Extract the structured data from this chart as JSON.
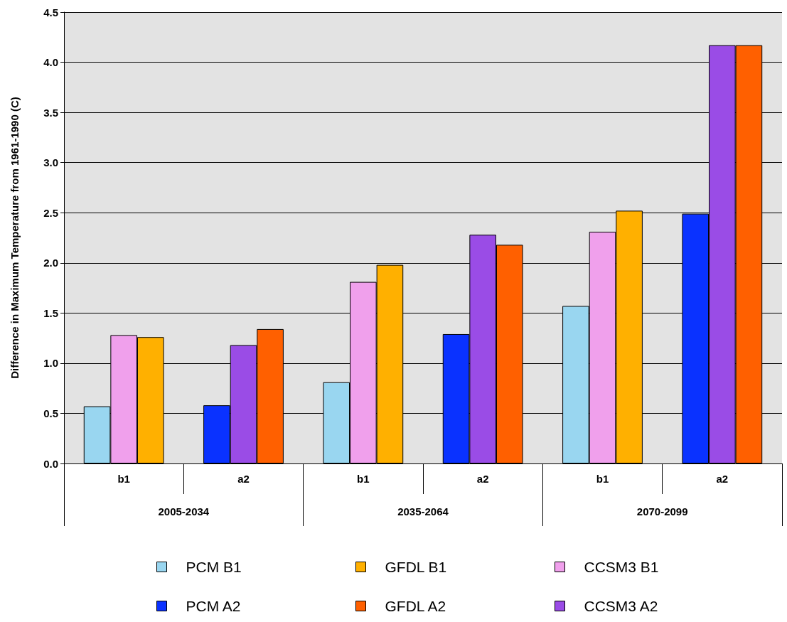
{
  "chart_data": {
    "type": "bar",
    "ylabel": "Difference in Maximum Temperature from 1961-1990 (C)",
    "categories": [
      "b1",
      "a2",
      "b1",
      "a2",
      "b1",
      "a2"
    ],
    "annotations": [
      "2005-2034",
      "2035-2064",
      "2070-2099"
    ],
    "series": [
      {
        "name": "PCM B1",
        "color": "#99d6f0",
        "values": [
          0.57,
          null,
          0.81,
          null,
          1.57,
          null
        ]
      },
      {
        "name": "CCSM3 B1",
        "color": "#f0a0ec",
        "values": [
          1.28,
          null,
          1.81,
          null,
          2.31,
          null
        ]
      },
      {
        "name": "GFDL B1",
        "color": "#ffb000",
        "values": [
          1.26,
          null,
          1.98,
          null,
          2.52,
          null
        ]
      },
      {
        "name": "PCM A2",
        "color": "#0a32ff",
        "values": [
          null,
          0.58,
          null,
          1.29,
          null,
          2.49
        ]
      },
      {
        "name": "CCSM3 A2",
        "color": "#9a4ce6",
        "values": [
          null,
          1.18,
          null,
          2.28,
          null,
          4.17
        ]
      },
      {
        "name": "GFDL A2",
        "color": "#ff6000",
        "values": [
          null,
          1.34,
          null,
          2.18,
          null,
          4.17
        ]
      }
    ],
    "ylim": [
      0,
      4.5
    ],
    "yticks": [
      {
        "value": 0,
        "label": "0.0"
      },
      {
        "value": 0.5,
        "label": "0.5"
      },
      {
        "value": 1,
        "label": "1.0"
      },
      {
        "value": 1.5,
        "label": "1.5"
      },
      {
        "value": 2,
        "label": "2.0"
      },
      {
        "value": 2.5,
        "label": "2.5"
      },
      {
        "value": 3,
        "label": "3.0"
      },
      {
        "value": 3.5,
        "label": "3.5"
      },
      {
        "value": 4,
        "label": "4.0"
      },
      {
        "value": 4.5,
        "label": "4.5"
      }
    ],
    "grid": "y",
    "legend": "bottom"
  }
}
